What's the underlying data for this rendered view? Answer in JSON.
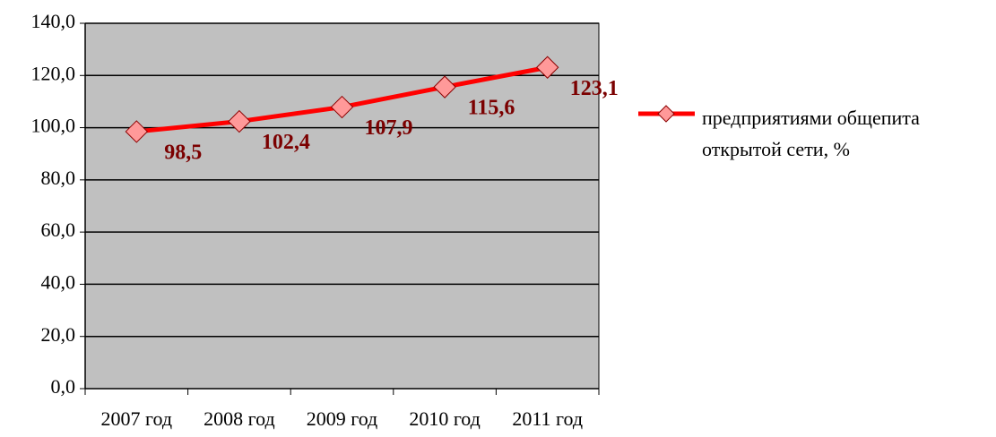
{
  "chart_data": {
    "type": "line",
    "categories": [
      "2007 год",
      "2008 год",
      "2009 год",
      "2010 год",
      "2011 год"
    ],
    "series": [
      {
        "name": "предприятиями общепита открытой сети, %",
        "color": "#ff0000",
        "values": [
          98.5,
          102.4,
          107.9,
          115.6,
          123.1
        ],
        "value_labels": [
          "98,5",
          "102,4",
          "107,9",
          "115,6",
          "123,1"
        ]
      }
    ],
    "ylim": [
      0,
      140
    ],
    "yticks": [
      {
        "value": 0,
        "label": "0,0"
      },
      {
        "value": 20,
        "label": "20,0"
      },
      {
        "value": 40,
        "label": "40,0"
      },
      {
        "value": 60,
        "label": "60,0"
      },
      {
        "value": 80,
        "label": "80,0"
      },
      {
        "value": 100,
        "label": "100,0"
      },
      {
        "value": 120,
        "label": "120,0"
      },
      {
        "value": 140,
        "label": "140,0"
      }
    ],
    "grid": true,
    "legend": "right"
  }
}
